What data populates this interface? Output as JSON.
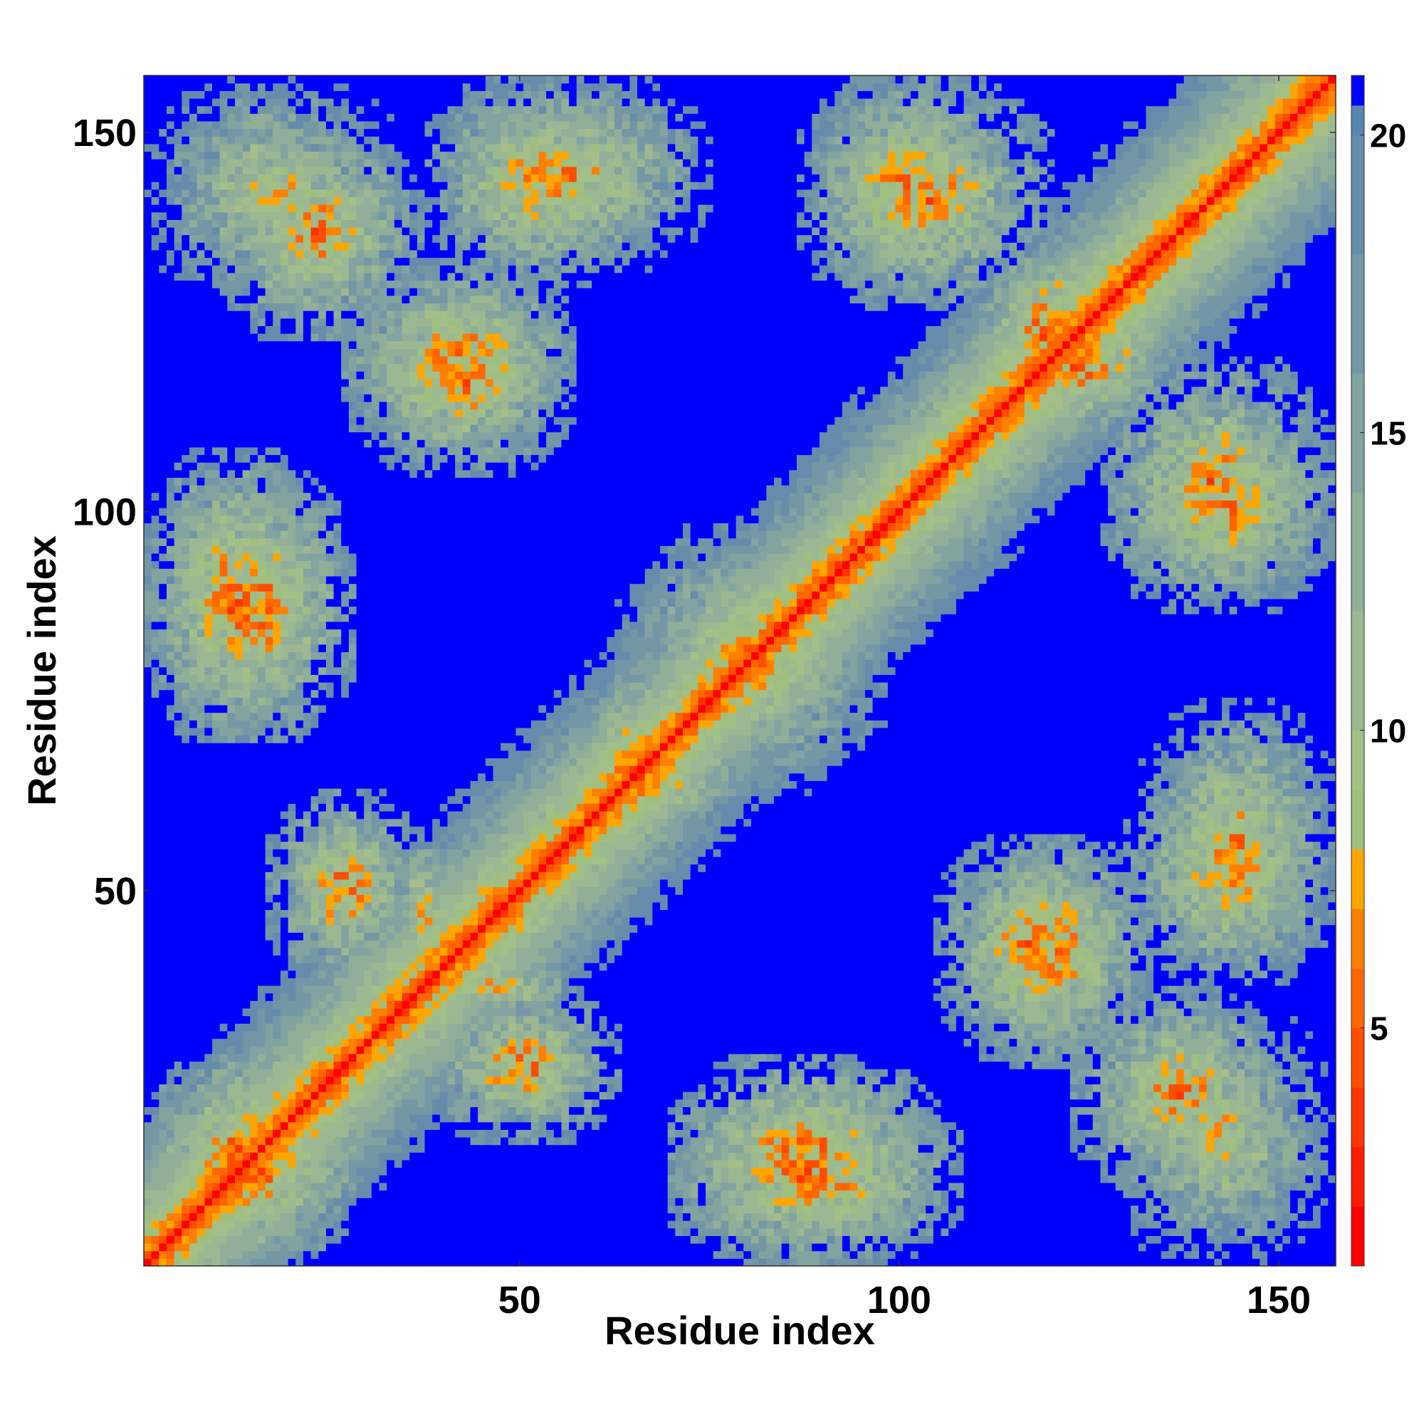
{
  "chart_data": {
    "type": "heatmap",
    "title": "",
    "xlabel": "Residue index",
    "ylabel": "Residue index",
    "n_residues": 157,
    "xlim": [
      1,
      157
    ],
    "ylim": [
      1,
      157
    ],
    "x_ticks": [
      50,
      100,
      150
    ],
    "y_ticks": [
      50,
      100,
      150
    ],
    "x_tick_labels": [
      "50",
      "100",
      "150"
    ],
    "y_tick_labels": [
      "50",
      "100",
      "150"
    ],
    "colorbar": {
      "range": [
        1,
        21
      ],
      "ticks": [
        5,
        10,
        15,
        20
      ],
      "tick_labels": [
        "5",
        "10",
        "15",
        "20"
      ],
      "levels": [
        {
          "max": 2,
          "color": "#ff0000"
        },
        {
          "max": 3,
          "color": "#ff1a00"
        },
        {
          "max": 4,
          "color": "#ff3300"
        },
        {
          "max": 5,
          "color": "#ff4d00"
        },
        {
          "max": 6,
          "color": "#ff6600"
        },
        {
          "max": 7,
          "color": "#ff8000"
        },
        {
          "max": 8,
          "color": "#ffa500"
        },
        {
          "max": 9,
          "color": "#9fbf80"
        },
        {
          "max": 10,
          "color": "#a4c088"
        },
        {
          "max": 12,
          "color": "#9cb892"
        },
        {
          "max": 14,
          "color": "#90ae98"
        },
        {
          "max": 16,
          "color": "#82a3a0"
        },
        {
          "max": 18,
          "color": "#7497a6"
        },
        {
          "max": 20,
          "color": "#678bab"
        },
        {
          "max": 20.5,
          "color": "#5b84b2"
        },
        {
          "max": 21,
          "color": "#0000ff"
        }
      ]
    },
    "cutoff": 20,
    "contact_blocks": [
      {
        "x": [
          1,
          34
        ],
        "y": [
          128,
          157
        ],
        "min": 8
      },
      {
        "x": [
          40,
          75
        ],
        "y": [
          132,
          157
        ],
        "min": 7
      },
      {
        "x": [
          27,
          57
        ],
        "y": [
          108,
          133
        ],
        "min": 6
      },
      {
        "x": [
          1,
          23
        ],
        "y": [
          70,
          108
        ],
        "min": 6
      },
      {
        "x": [
          1,
          28
        ],
        "y": [
          1,
          25
        ],
        "min": 5
      },
      {
        "x": [
          17,
          37
        ],
        "y": [
          38,
          63
        ],
        "min": 6
      },
      {
        "x": [
          70,
          105
        ],
        "y": [
          1,
          28
        ],
        "min": 5
      },
      {
        "x": [
          89,
          112
        ],
        "y": [
          128,
          157
        ],
        "min": 6
      },
      {
        "x": [
          110,
          137
        ],
        "y": [
          110,
          130
        ],
        "min": 5
      },
      {
        "x": [
          127,
          157
        ],
        "y": [
          87,
          120
        ],
        "min": 6
      },
      {
        "x": [
          65,
          95
        ],
        "y": [
          63,
          98
        ],
        "min": 7
      },
      {
        "x": [
          105,
          130
        ],
        "y": [
          28,
          57
        ],
        "min": 6
      },
      {
        "x": [
          130,
          157
        ],
        "y": [
          38,
          67
        ],
        "min": 6
      },
      {
        "x": [
          123,
          150
        ],
        "y": [
          10,
          37
        ],
        "min": 6
      },
      {
        "x": [
          37,
          58
        ],
        "y": [
          33,
          42
        ],
        "min": 7
      },
      {
        "x": [
          58,
          78
        ],
        "y": [
          59,
          68
        ],
        "min": 6
      }
    ]
  }
}
